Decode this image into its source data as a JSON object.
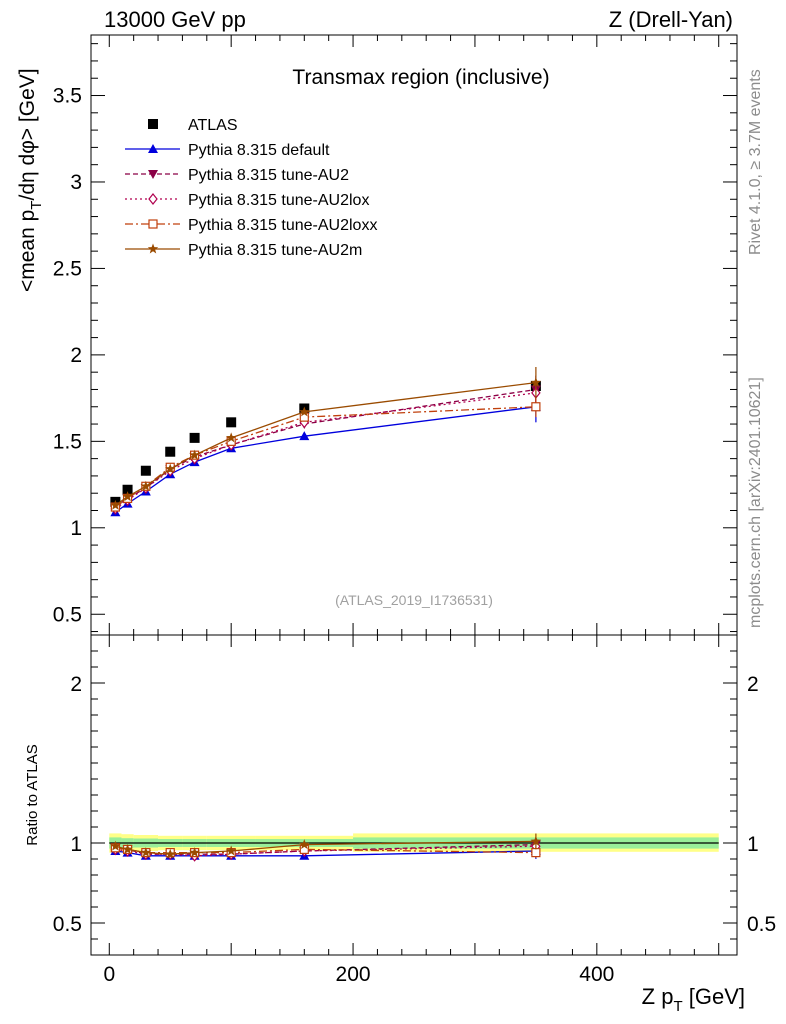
{
  "header": {
    "energy_label": "13000 GeV pp",
    "process_label": "Z (Drell-Yan)"
  },
  "side_labels": {
    "rivet": "Rivet 4.1.0, ≥ 3.7M events",
    "source": "mcplots.cern.ch [arXiv:2401.10621]"
  },
  "colors": {
    "atlas": "#000000",
    "default": "#0000dd",
    "au2": "#8b0046",
    "au2lox": "#b0004f",
    "au2loxx": "#c0400d",
    "au2m": "#9a4b00",
    "band_outer": "#ffff88",
    "band_inner": "#99ee99"
  },
  "chart_data": [
    {
      "type": "line",
      "title": "Transmax region (inclusive)",
      "reference": "(ATLAS_2019_I1736531)",
      "ylabel": "<mean p_T/dη dφ> [GeV]",
      "ylim": [
        0.38,
        3.85
      ],
      "xlim": [
        -15,
        515
      ],
      "yticks": [
        "0.5",
        "1",
        "1.5",
        "2",
        "2.5",
        "3",
        "3.5"
      ],
      "x": [
        5,
        15,
        30,
        50,
        70,
        100,
        160,
        350
      ],
      "series": [
        {
          "name": "ATLAS",
          "marker": "square",
          "values": [
            1.15,
            1.22,
            1.33,
            1.44,
            1.52,
            1.61,
            1.69,
            1.82
          ]
        },
        {
          "name": "Pythia 8.315 default",
          "marker": "triangle",
          "values": [
            1.09,
            1.14,
            1.21,
            1.31,
            1.38,
            1.46,
            1.53,
            1.7
          ]
        },
        {
          "name": "Pythia 8.315 tune-AU2",
          "marker": "triangle-down",
          "values": [
            1.12,
            1.17,
            1.23,
            1.34,
            1.41,
            1.48,
            1.6,
            1.8
          ]
        },
        {
          "name": "Pythia 8.315 tune-AU2lox",
          "marker": "diamond",
          "values": [
            1.11,
            1.16,
            1.23,
            1.33,
            1.4,
            1.48,
            1.61,
            1.78
          ]
        },
        {
          "name": "Pythia 8.315 tune-AU2loxx",
          "marker": "square-open",
          "values": [
            1.12,
            1.17,
            1.24,
            1.35,
            1.42,
            1.5,
            1.64,
            1.7
          ]
        },
        {
          "name": "Pythia 8.315 tune-AU2m",
          "marker": "star",
          "values": [
            1.13,
            1.18,
            1.24,
            1.34,
            1.42,
            1.52,
            1.67,
            1.84
          ]
        }
      ],
      "errors_last_point": [
        0.03,
        0.09,
        0.08,
        0.06,
        0.06,
        0.09
      ]
    },
    {
      "type": "line",
      "title": "",
      "ylabel": "Ratio to ATLAS",
      "xlabel": "Z p_T [GeV]",
      "ylim": [
        0.3,
        2.3
      ],
      "xlim": [
        -15,
        515
      ],
      "yticks": [
        "0.5",
        "1",
        "2"
      ],
      "xticks": [
        "0",
        "200",
        "400"
      ],
      "x": [
        5,
        15,
        30,
        50,
        70,
        100,
        160,
        350
      ],
      "series": [
        {
          "name": "Pythia 8.315 default",
          "values": [
            0.95,
            0.94,
            0.92,
            0.92,
            0.92,
            0.92,
            0.92,
            0.95
          ]
        },
        {
          "name": "Pythia 8.315 tune-AU2",
          "values": [
            0.97,
            0.96,
            0.93,
            0.93,
            0.93,
            0.93,
            0.95,
            0.99
          ]
        },
        {
          "name": "Pythia 8.315 tune-AU2lox",
          "values": [
            0.96,
            0.95,
            0.93,
            0.93,
            0.92,
            0.93,
            0.95,
            0.98
          ]
        },
        {
          "name": "Pythia 8.315 tune-AU2loxx",
          "values": [
            0.97,
            0.96,
            0.94,
            0.94,
            0.94,
            0.94,
            0.96,
            0.94
          ]
        },
        {
          "name": "Pythia 8.315 tune-AU2m",
          "values": [
            0.98,
            0.96,
            0.94,
            0.93,
            0.94,
            0.95,
            0.99,
            1.01
          ]
        }
      ],
      "band_bins": [
        [
          0,
          10
        ],
        [
          10,
          20
        ],
        [
          20,
          40
        ],
        [
          40,
          60
        ],
        [
          60,
          80
        ],
        [
          80,
          120
        ],
        [
          120,
          200
        ],
        [
          200,
          500
        ]
      ],
      "band_outer": [
        [
          0.94,
          1.06
        ],
        [
          0.945,
          1.055
        ],
        [
          0.95,
          1.05
        ],
        [
          0.955,
          1.045
        ],
        [
          0.955,
          1.045
        ],
        [
          0.955,
          1.045
        ],
        [
          0.955,
          1.045
        ],
        [
          0.945,
          1.06
        ]
      ],
      "band_inner": [
        [
          0.965,
          1.035
        ],
        [
          0.97,
          1.03
        ],
        [
          0.972,
          1.028
        ],
        [
          0.975,
          1.025
        ],
        [
          0.975,
          1.025
        ],
        [
          0.975,
          1.025
        ],
        [
          0.975,
          1.025
        ],
        [
          0.965,
          1.035
        ]
      ]
    }
  ]
}
